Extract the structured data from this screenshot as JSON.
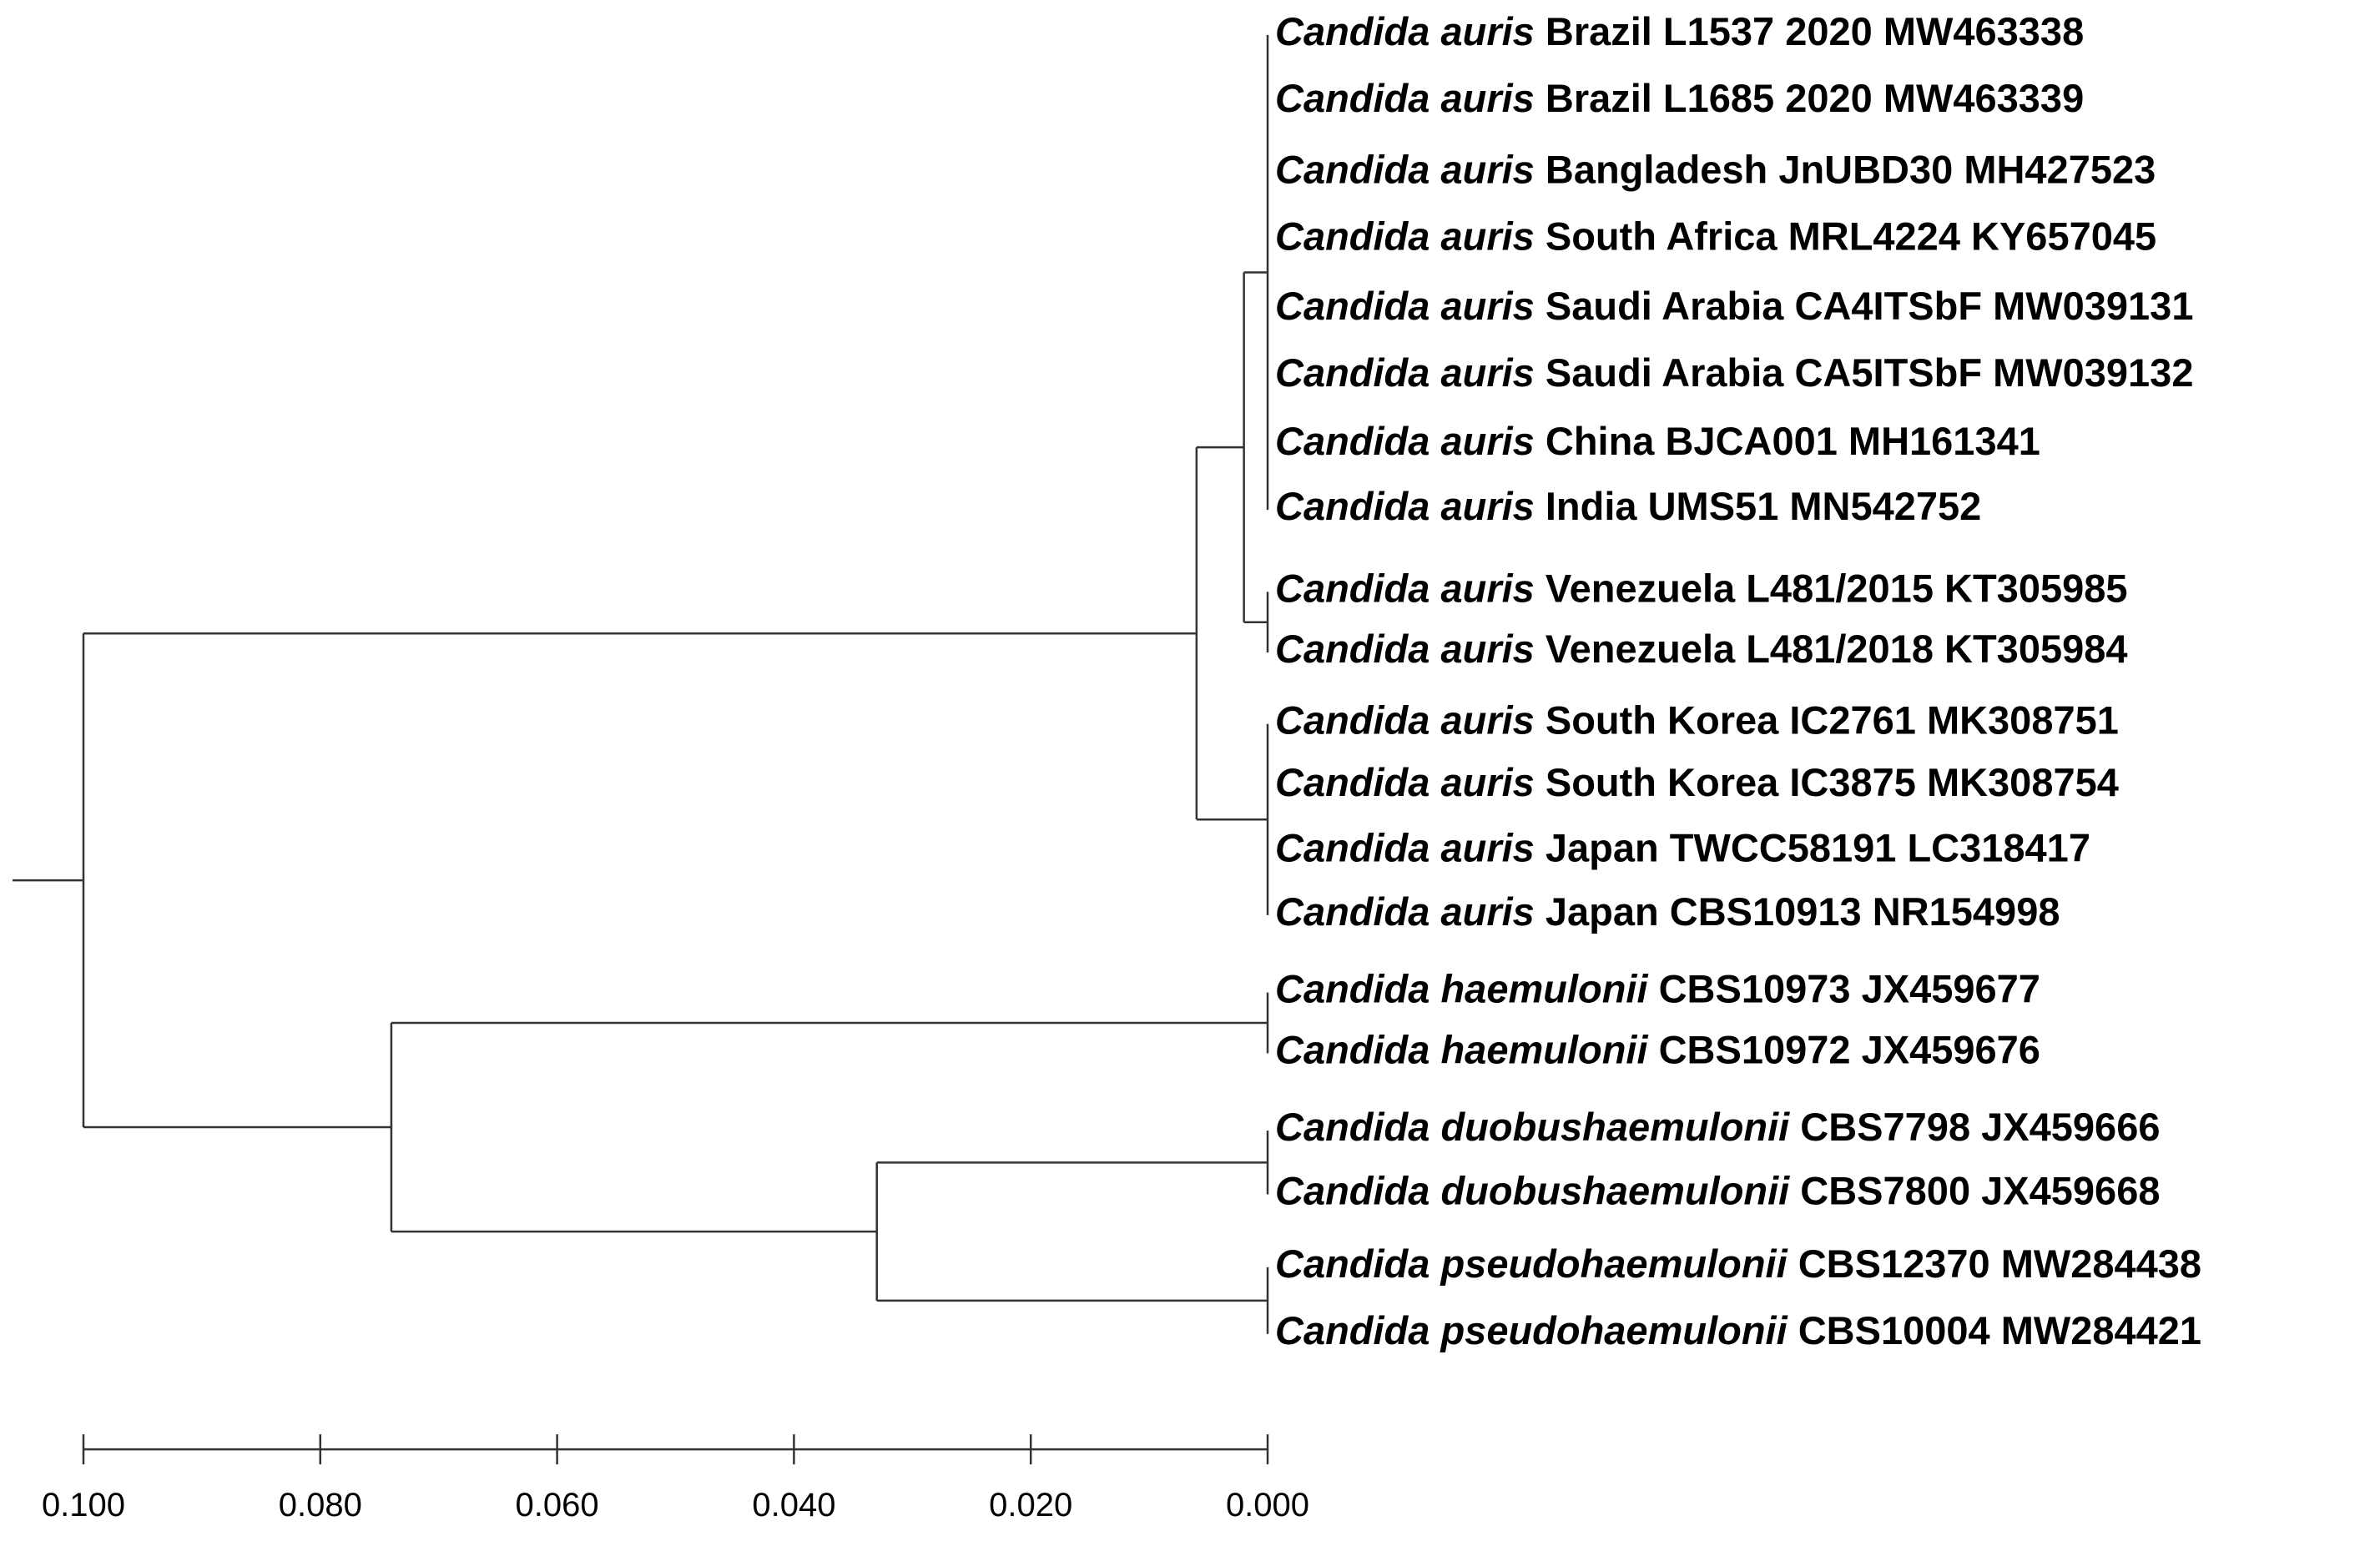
{
  "scale": {
    "xlim": [
      0.1,
      0
    ],
    "xticks": [
      {
        "value": 0.1,
        "label": "0.100"
      },
      {
        "value": 0.08,
        "label": "0.080"
      },
      {
        "value": 0.06,
        "label": "0.060"
      },
      {
        "value": 0.04,
        "label": "0.040"
      },
      {
        "value": 0.02,
        "label": "0.020"
      },
      {
        "value": 0,
        "label": "0.000"
      }
    ]
  },
  "tree": {
    "height": 0.1,
    "children": [
      {
        "height": 0.006,
        "children": [
          {
            "height": 0.002,
            "children": [
              {
                "height": 0,
                "children": [
                  {
                    "species": "Candida auris",
                    "rest": "Brazil L1537 2020 MW463338"
                  },
                  {
                    "species": "Candida auris",
                    "rest": "Brazil L1685 2020 MW463339"
                  },
                  {
                    "species": "Candida auris",
                    "rest": "Bangladesh JnUBD30 MH427523"
                  },
                  {
                    "species": "Candida auris",
                    "rest": "South Africa MRL4224 KY657045"
                  },
                  {
                    "species": "Candida auris",
                    "rest": "Saudi Arabia CA4ITSbF MW039131"
                  },
                  {
                    "species": "Candida auris",
                    "rest": "Saudi Arabia CA5ITSbF MW039132"
                  },
                  {
                    "species": "Candida auris",
                    "rest": "China BJCA001 MH161341"
                  },
                  {
                    "species": "Candida auris",
                    "rest": "India UMS51 MN542752"
                  }
                ]
              },
              {
                "height": 0,
                "children": [
                  {
                    "species": "Candida auris",
                    "rest": "Venezuela L481/2015 KT305985"
                  },
                  {
                    "species": "Candida auris",
                    "rest": "Venezuela L481/2018 KT305984"
                  }
                ]
              }
            ]
          },
          {
            "height": 0,
            "children": [
              {
                "species": "Candida auris",
                "rest": "South Korea IC2761 MK308751"
              },
              {
                "species": "Candida auris",
                "rest": "South Korea IC3875 MK308754"
              },
              {
                "species": "Candida auris",
                "rest": "Japan TWCC58191 LC318417"
              },
              {
                "species": "Candida auris",
                "rest": "Japan CBS10913 NR154998"
              }
            ]
          }
        ]
      },
      {
        "height": 0.074,
        "children": [
          {
            "height": 0,
            "children": [
              {
                "species": "Candida haemulonii",
                "rest": "CBS10973 JX459677"
              },
              {
                "species": "Candida haemulonii",
                "rest": "CBS10972 JX459676"
              }
            ]
          },
          {
            "height": 0.033,
            "children": [
              {
                "height": 0,
                "children": [
                  {
                    "species": "Candida duobushaemulonii",
                    "rest": "CBS7798 JX459666"
                  },
                  {
                    "species": "Candida duobushaemulonii",
                    "rest": "CBS7800 JX459668"
                  }
                ]
              },
              {
                "height": 0,
                "children": [
                  {
                    "species": "Candida pseudohaemulonii",
                    "rest": "CBS12370 MW284438"
                  },
                  {
                    "species": "Candida pseudohaemulonii",
                    "rest": "CBS10004 MW284421"
                  }
                ]
              }
            ]
          }
        ]
      }
    ]
  }
}
